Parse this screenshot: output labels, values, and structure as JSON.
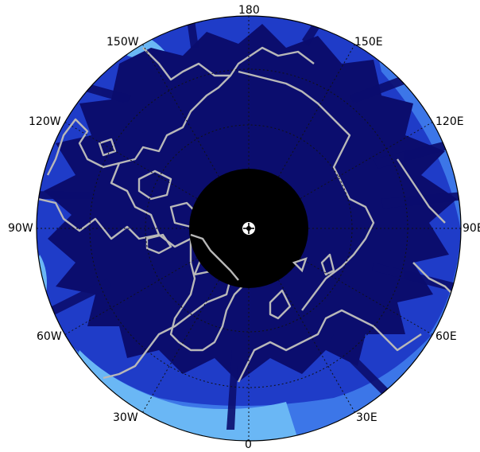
{
  "map": {
    "projection": "north polar stereographic",
    "colors": {
      "ocean_core": "#0b0d6e",
      "mid_blue": "#1f3cc8",
      "light_blue": "#3c76e8",
      "sky_blue": "#6ab7f5",
      "pole_mask": "#000000",
      "coastline": "#b8b8b8",
      "graticule": "#111111",
      "outline": "#000000"
    },
    "pole_mask": "unsampled polar region (black disc)",
    "longitude_labels": [
      "180",
      "150E",
      "120E",
      "90E",
      "60E",
      "30E",
      "0",
      "30W",
      "60W",
      "90W",
      "120W",
      "150W"
    ],
    "graticule_longitudes_deg": [
      0,
      30,
      60,
      90,
      120,
      150,
      180,
      210,
      240,
      270,
      300,
      330
    ],
    "graticule_latitudes": "dotted circles"
  }
}
